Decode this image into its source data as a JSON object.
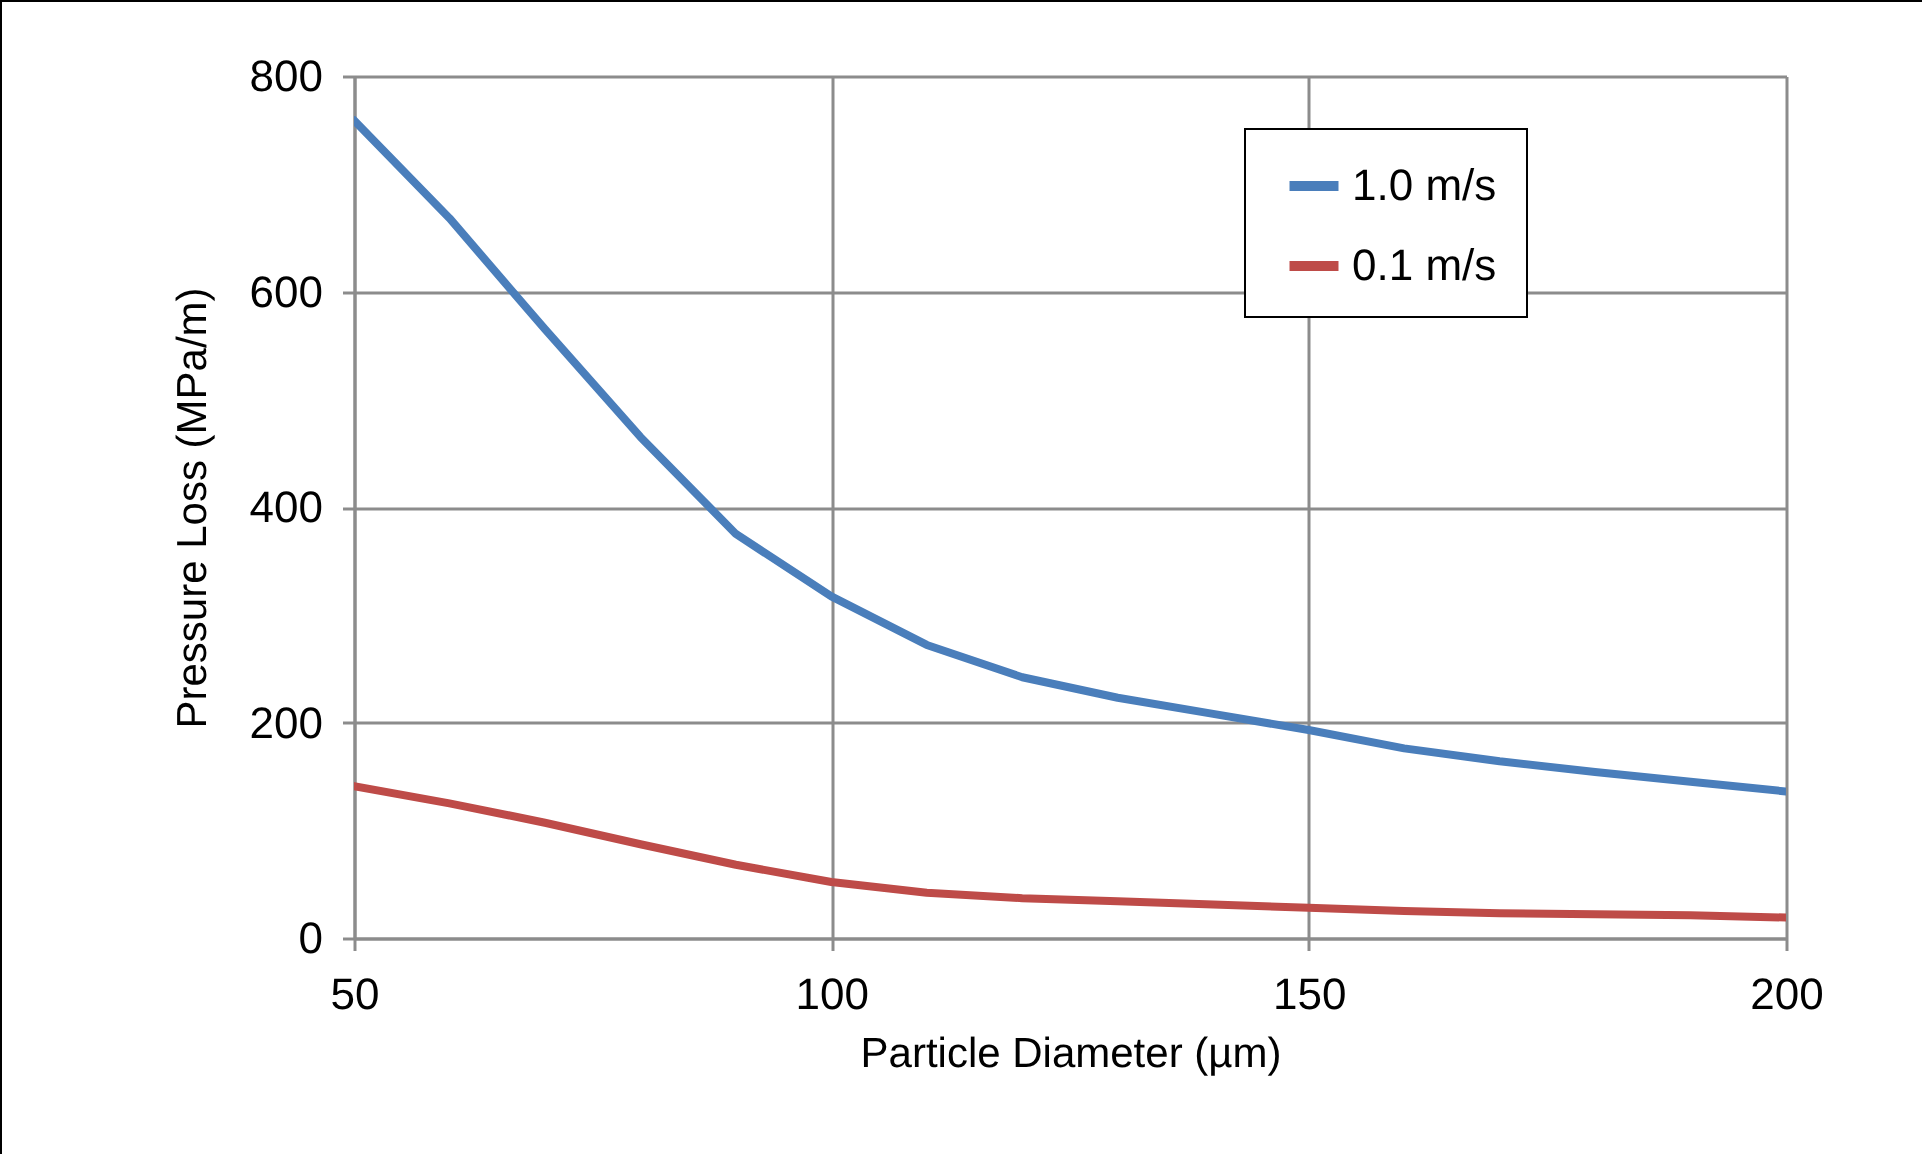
{
  "chart_data": {
    "type": "line",
    "xlabel": "Particle Diameter (µm)",
    "ylabel": "Pressure Loss (MPa/m)",
    "x": [
      50,
      60,
      70,
      80,
      90,
      100,
      110,
      120,
      130,
      140,
      150,
      160,
      170,
      180,
      190,
      200
    ],
    "series": [
      {
        "name": "1.0 m/s",
        "color": "#4a7ebb",
        "values": [
          759,
          668,
          565,
          465,
          375,
          317,
          272,
          242,
          223,
          208,
          193,
          176,
          164,
          154,
          145,
          136
        ]
      },
      {
        "name": "0.1 m/s",
        "color": "#be4b48",
        "values": [
          141,
          125,
          107,
          87,
          68,
          52,
          42,
          37,
          34,
          31,
          28,
          25,
          23,
          22,
          21,
          19
        ]
      }
    ],
    "xlim": [
      50,
      200
    ],
    "xticks": [
      50,
      100,
      150,
      200
    ],
    "ylim": [
      0,
      800
    ],
    "yticks": [
      0,
      200,
      400,
      600,
      800
    ],
    "grid": true,
    "legend": "top right",
    "marker": "none",
    "line_style": "solid"
  }
}
